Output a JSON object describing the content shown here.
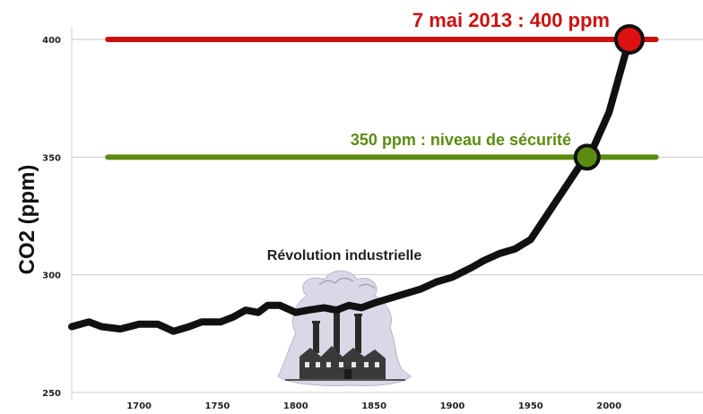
{
  "chart_data": {
    "type": "line",
    "title": "",
    "xlabel": "",
    "ylabel": "CO2 (ppm)",
    "xlim": [
      1657,
      2060
    ],
    "ylim": [
      250,
      410
    ],
    "x_ticks": [
      1700,
      1750,
      1800,
      1850,
      1900,
      1950,
      2000
    ],
    "y_ticks": [
      250,
      300,
      350,
      400
    ],
    "grid": "horizontal",
    "series": [
      {
        "name": "",
        "color": "#111111",
        "x": [
          1657,
          1668,
          1676,
          1688,
          1700,
          1712,
          1722,
          1732,
          1740,
          1752,
          1760,
          1768,
          1776,
          1782,
          1790,
          1800,
          1808,
          1818,
          1826,
          1834,
          1842,
          1850,
          1860,
          1870,
          1880,
          1890,
          1900,
          1906,
          1912,
          1920,
          1930,
          1940,
          1950,
          1960,
          1970,
          1980,
          1990,
          2000,
          2013
        ],
        "y": [
          278,
          280,
          278,
          277,
          279,
          279,
          276,
          278,
          280,
          280,
          282,
          285,
          284,
          287,
          287,
          284,
          285,
          286,
          285,
          287,
          286,
          288,
          290,
          292,
          294,
          297,
          299,
          301,
          303,
          306,
          309,
          311,
          315,
          325,
          335,
          345,
          354,
          369,
          400
        ]
      }
    ],
    "reference_lines": [
      {
        "y": 400,
        "color": "#cc1111",
        "label": "7 mai 2013 : 400 ppm",
        "x_from": 1680,
        "x_to": 2030
      },
      {
        "y": 350,
        "color": "#5b8c10",
        "label": "350 ppm : niveau de sécurité",
        "x_from": 1680,
        "x_to": 2030
      }
    ],
    "markers": [
      {
        "x": 2013,
        "y": 400,
        "color": "#dd1111"
      },
      {
        "x": 1986,
        "y": 350,
        "color": "#5b8c10"
      }
    ],
    "annotations": [
      {
        "text": "Révolution industrielle",
        "x": 1835,
        "y": 296
      }
    ],
    "icon": "factory-illustration",
    "colors": {
      "line": "#111111",
      "grid": "#cccccc",
      "red": "#cc1111",
      "green": "#5b8c10"
    }
  }
}
